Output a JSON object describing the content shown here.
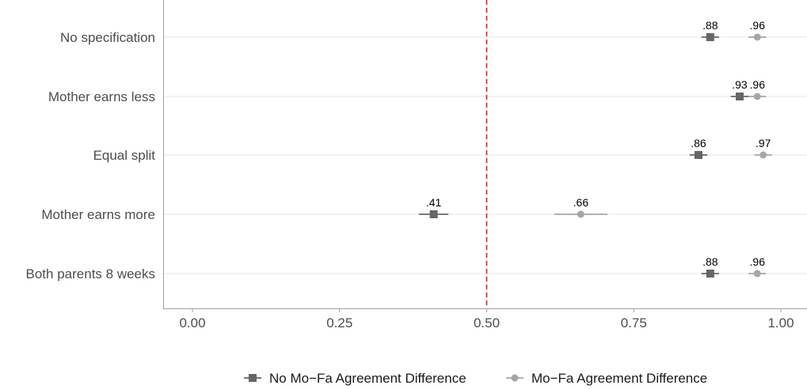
{
  "chart_data": {
    "type": "scatter",
    "orientation": "horizontal",
    "categories": [
      "No specification",
      "Mother earns less",
      "Equal split",
      "Mother earns more",
      "Both parents 8 weeks"
    ],
    "xlim": [
      -0.05,
      1.03
    ],
    "x_ticks": [
      0.0,
      0.25,
      0.5,
      0.75,
      1.0
    ],
    "x_tick_labels": [
      "0.00",
      "0.25",
      "0.50",
      "0.75",
      "1.00"
    ],
    "reference_line": {
      "x": 0.5,
      "style": "dashed",
      "color": "#e31a1c"
    },
    "grid": "horizontal",
    "legend_position": "bottom",
    "series": [
      {
        "name": "No Mo−Fa Agreement Difference",
        "marker": "square",
        "color": "#666666",
        "values": [
          0.88,
          0.93,
          0.86,
          0.41,
          0.88
        ],
        "ci_low": [
          0.865,
          0.915,
          0.845,
          0.385,
          0.865
        ],
        "ci_high": [
          0.895,
          0.945,
          0.875,
          0.435,
          0.895
        ],
        "labels": [
          ".88",
          ".93",
          ".86",
          ".41",
          ".88"
        ]
      },
      {
        "name": "Mo−Fa Agreement Difference",
        "marker": "circle",
        "color": "#a6a6a6",
        "values": [
          0.96,
          0.96,
          0.97,
          0.66,
          0.96
        ],
        "ci_low": [
          0.945,
          0.945,
          0.955,
          0.615,
          0.945
        ],
        "ci_high": [
          0.975,
          0.975,
          0.985,
          0.705,
          0.975
        ],
        "labels": [
          ".96",
          ".96",
          ".97",
          ".66",
          ".96"
        ]
      }
    ]
  }
}
